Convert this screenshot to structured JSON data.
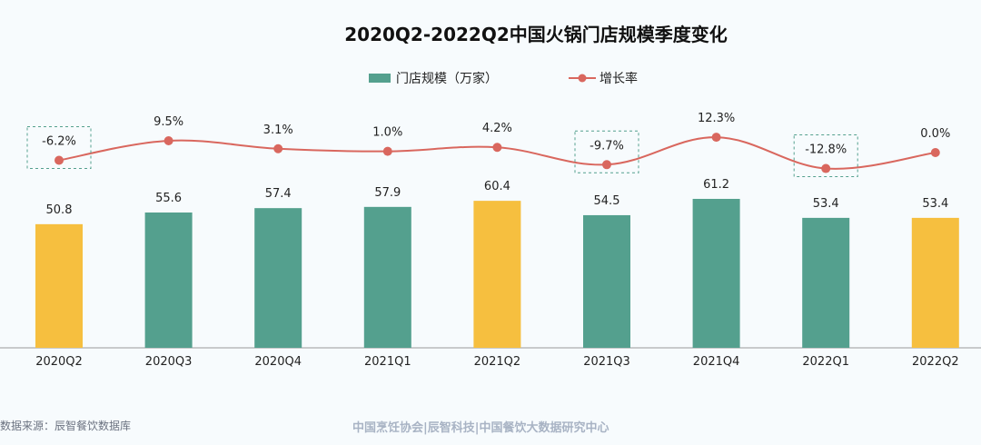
{
  "chart_data": {
    "type": "bar+line",
    "title": "2020Q2-2022Q2中国火锅门店规模季度变化",
    "categories": [
      "2020Q2",
      "2020Q3",
      "2020Q4",
      "2021Q1",
      "2021Q2",
      "2021Q3",
      "2021Q4",
      "2022Q1",
      "2022Q2"
    ],
    "series": [
      {
        "name": "门店规模（万家）",
        "type": "bar",
        "values": [
          50.8,
          55.6,
          57.4,
          57.9,
          60.4,
          54.5,
          61.2,
          53.4,
          53.4
        ],
        "labels": [
          "50.8",
          "55.6",
          "57.4",
          "57.9",
          "60.4",
          "54.5",
          "61.2",
          "53.4",
          "53.4"
        ]
      },
      {
        "name": "增长率",
        "type": "line",
        "values": [
          -6.2,
          9.5,
          3.1,
          1.0,
          4.2,
          -9.7,
          12.3,
          -12.8,
          0.0
        ],
        "labels": [
          "-6.2%",
          "9.5%",
          "3.1%",
          "1.0%",
          "4.2%",
          "-9.7%",
          "12.3%",
          "-12.8%",
          "0.0%"
        ]
      }
    ],
    "highlight_categories": [
      "2020Q2",
      "2021Q2",
      "2022Q2"
    ],
    "colors": {
      "bar": "#54a08e",
      "bar_highlight": "#f6bf3f",
      "line": "#d9675e",
      "box": "#54a08e"
    },
    "legend": "top",
    "grid": false
  },
  "footer": {
    "source": "数据来源：辰智餐饮数据库",
    "org": "中国烹饪协会|辰智科技|中国餐饮大数据研究中心"
  }
}
